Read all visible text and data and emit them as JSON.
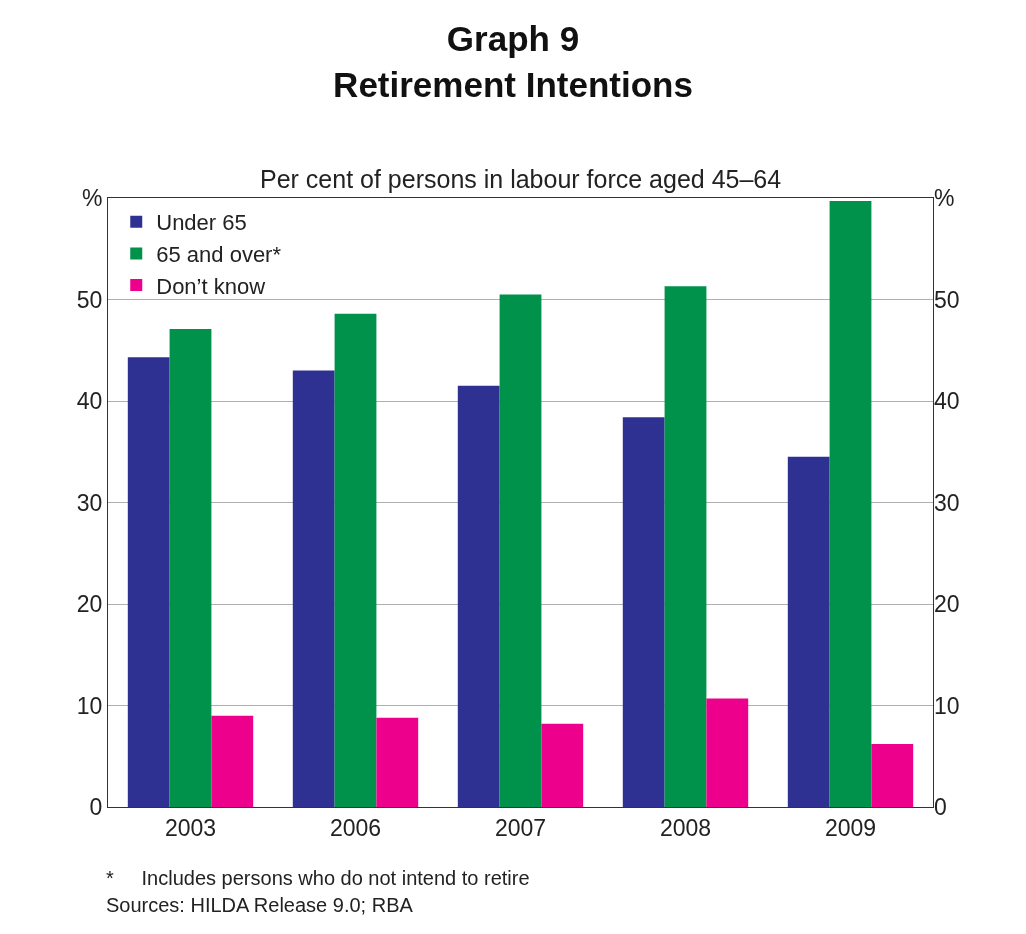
{
  "chart_data": {
    "type": "bar",
    "title": "Graph 9\nRetirement Intentions",
    "subtitle": "Per cent of persons in labour force aged 45–64",
    "categories": [
      "2003",
      "2006",
      "2007",
      "2008",
      "2009"
    ],
    "series": [
      {
        "name": "Under 65",
        "color": "#2e3192",
        "values": [
          44.3,
          43.0,
          41.5,
          38.4,
          34.5
        ]
      },
      {
        "name": "65 and over*",
        "color": "#00914a",
        "values": [
          47.1,
          48.6,
          50.5,
          51.3,
          59.7
        ]
      },
      {
        "name": "Don’t know",
        "color": "#ec008c",
        "values": [
          9.0,
          8.8,
          8.2,
          10.7,
          6.2
        ]
      }
    ],
    "ylim": [
      0,
      60
    ],
    "yticks": [
      0,
      10,
      20,
      30,
      40,
      50,
      {
        "value": 60,
        "label": "%"
      }
    ],
    "y2lim": [
      0,
      60
    ],
    "y2ticks": [
      0,
      10,
      20,
      30,
      40,
      50,
      {
        "value": 60,
        "label": "%"
      }
    ],
    "grid": "y",
    "legend": "top left",
    "annotations": [
      "*     Includes persons who do not intend to retire",
      "Sources: HILDA Release 9.0; RBA"
    ]
  }
}
